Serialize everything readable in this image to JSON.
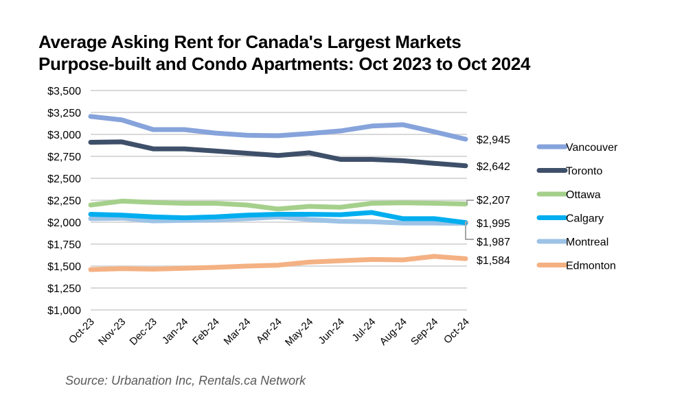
{
  "chart_data": {
    "type": "line",
    "title": "Average Asking Rent for Canada's Largest Markets",
    "subtitle": "Purpose-built and Condo Apartments: Oct 2023 to Oct 2024",
    "xlabel": "",
    "ylabel": "",
    "ylim": [
      1000,
      3500
    ],
    "yticks": [
      1000,
      1250,
      1500,
      1750,
      2000,
      2250,
      2500,
      2750,
      3000,
      3250,
      3500
    ],
    "ytick_labels": [
      "$1,000",
      "$1,250",
      "$1,500",
      "$1,750",
      "$2,000",
      "$2,250",
      "$2,500",
      "$2,750",
      "$3,000",
      "$3,250",
      "$3,500"
    ],
    "grid": true,
    "legend_position": "right",
    "categories": [
      "Oct-23",
      "Nov-23",
      "Dec-23",
      "Jan-24",
      "Feb-24",
      "Mar-24",
      "Apr-24",
      "May-24",
      "Jun-24",
      "Jul-24",
      "Aug-24",
      "Sep-24",
      "Oct-24"
    ],
    "series": [
      {
        "name": "Vancouver",
        "color": "#86A3DB",
        "end_label": "$2,945",
        "values": [
          3205,
          3165,
          3055,
          3055,
          3015,
          2990,
          2985,
          3010,
          3040,
          3095,
          3110,
          3030,
          2945
        ]
      },
      {
        "name": "Toronto",
        "color": "#3E4F69",
        "end_label": "$2,642",
        "values": [
          2910,
          2915,
          2835,
          2835,
          2810,
          2785,
          2760,
          2790,
          2715,
          2715,
          2700,
          2670,
          2642
        ]
      },
      {
        "name": "Ottawa",
        "color": "#A5D08C",
        "end_label": "$2,207",
        "values": [
          2195,
          2240,
          2225,
          2215,
          2215,
          2195,
          2150,
          2180,
          2170,
          2215,
          2220,
          2215,
          2207
        ]
      },
      {
        "name": "Calgary",
        "color": "#00AEEF",
        "end_label": "$1,995",
        "values": [
          2090,
          2080,
          2060,
          2050,
          2060,
          2080,
          2090,
          2090,
          2085,
          2110,
          2040,
          2040,
          1995
        ]
      },
      {
        "name": "Montreal",
        "color": "#9DC3E6",
        "end_label": "$1,987",
        "values": [
          2040,
          2045,
          2015,
          2020,
          2025,
          2040,
          2060,
          2030,
          2010,
          2005,
          1990,
          1990,
          1987
        ]
      },
      {
        "name": "Edmonton",
        "color": "#F4B183",
        "end_label": "$1,584",
        "values": [
          1460,
          1470,
          1465,
          1475,
          1485,
          1500,
          1510,
          1545,
          1560,
          1575,
          1570,
          1610,
          1584
        ]
      }
    ],
    "source": "Source: Urbanation Inc, Rentals.ca Network"
  }
}
